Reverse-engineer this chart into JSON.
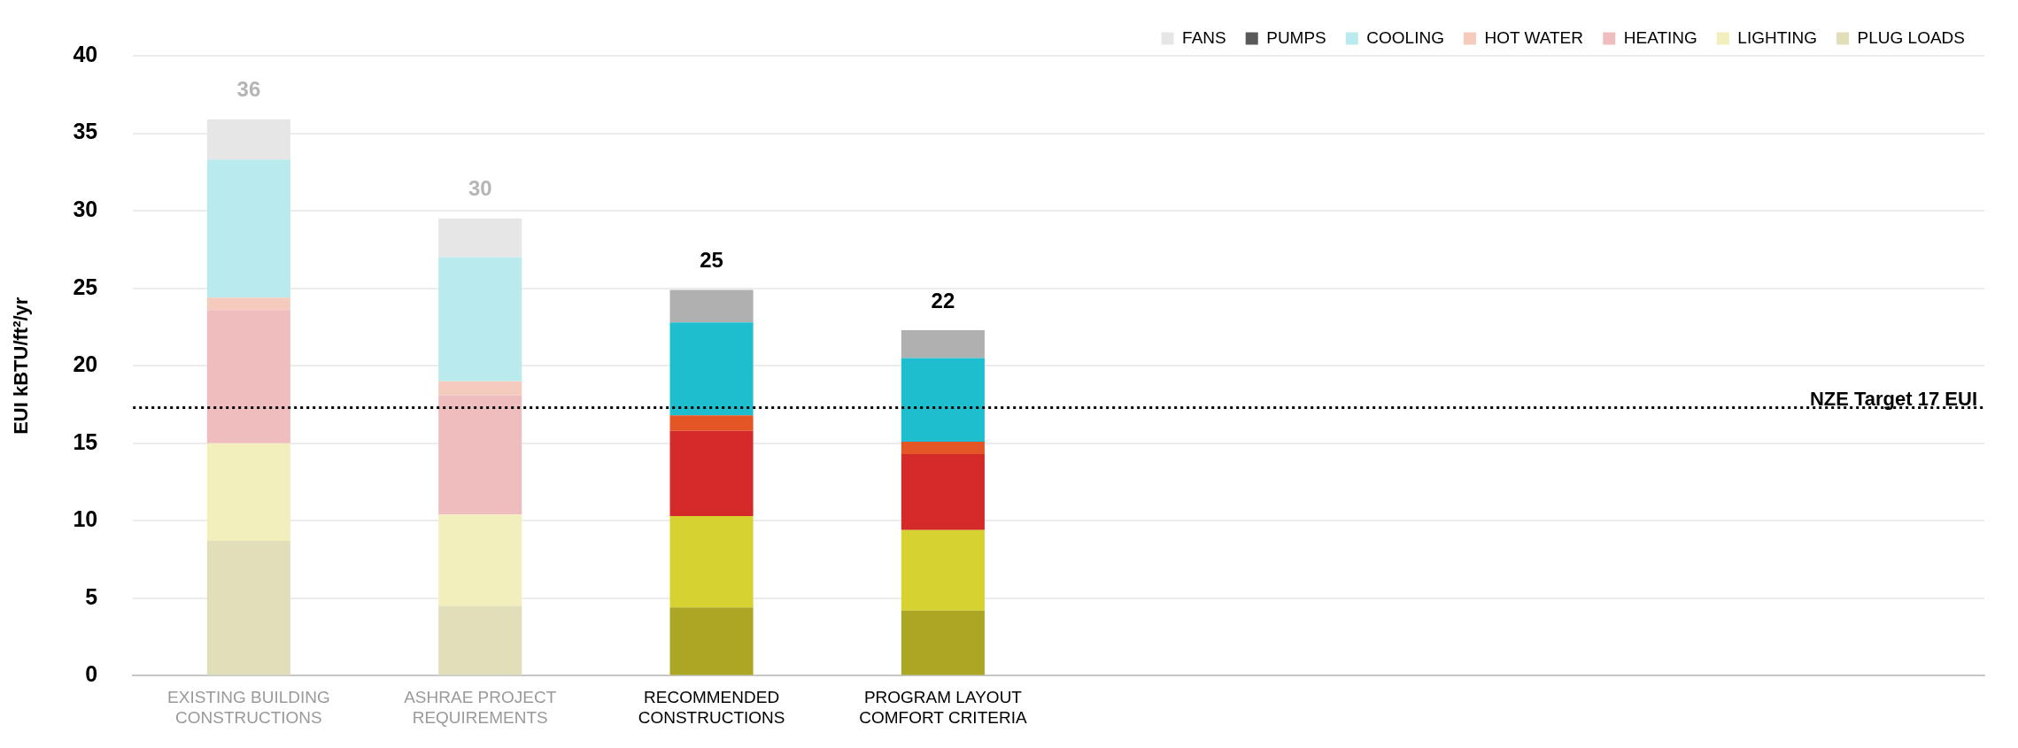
{
  "chart_data": {
    "type": "bar",
    "stacked": true,
    "ylabel": "EUI kBTU/ft²/yr",
    "categories": [
      "EXISTING BUILDING CONSTRUCTIONS",
      "ASHRAE PROJECT REQUIREMENTS",
      "RECOMMENDED CONSTRUCTIONS",
      "PROGRAM LAYOUT COMFORT CRITERIA",
      null,
      null,
      null,
      null
    ],
    "series": [
      {
        "name": "PLUG LOADS",
        "color": "#aba725",
        "colors": [
          "#e1dfb9",
          "#e1dfb9",
          "#aba725",
          "#aba725",
          null,
          null,
          null,
          null
        ],
        "values": [
          8.7,
          4.5,
          4.4,
          4.2,
          null,
          null,
          null,
          null
        ]
      },
      {
        "name": "LIGHTING",
        "color": "#d6d232",
        "colors": [
          "#f2efbd",
          "#f2efbd",
          "#d6d232",
          "#d6d232",
          null,
          null,
          null,
          null
        ],
        "values": [
          6.3,
          5.9,
          5.9,
          5.2,
          null,
          null,
          null,
          null
        ]
      },
      {
        "name": "HEATING",
        "color": "#d42a29",
        "colors": [
          "#efbdbd",
          "#efbdbd",
          "#d42a29",
          "#d42a29",
          null,
          null,
          null,
          null
        ],
        "values": [
          8.6,
          7.7,
          5.5,
          4.9,
          null,
          null,
          null,
          null
        ]
      },
      {
        "name": "HOT WATER",
        "color": "#e45625",
        "colors": [
          "#f5cbbd",
          "#f5cbbd",
          "#e45625",
          "#e45625",
          null,
          null,
          null,
          null
        ],
        "values": [
          0.8,
          0.9,
          1.0,
          0.8,
          null,
          null,
          null,
          null
        ]
      },
      {
        "name": "COOLING",
        "color": "#1fbecf",
        "colors": [
          "#b9eaee",
          "#b9eaee",
          "#1fbecf",
          "#1fbecf",
          null,
          null,
          null,
          null
        ],
        "values": [
          8.9,
          8.0,
          6.0,
          5.4,
          null,
          null,
          null,
          null
        ]
      },
      {
        "name": "PUMPS",
        "color": "#595959",
        "values": [
          0,
          0,
          0,
          0,
          null,
          null,
          null,
          null
        ]
      },
      {
        "name": "FANS",
        "color": "#b0b0b0",
        "colors": [
          "#e6e6e6",
          "#e6e6e6",
          "#b0b0b0",
          "#b0b0b0",
          null,
          null,
          null,
          null
        ],
        "values": [
          2.6,
          2.5,
          2.1,
          1.8,
          null,
          null,
          null,
          null
        ]
      }
    ],
    "totals": [
      "36",
      "30",
      "25",
      "22",
      null,
      null,
      null,
      null
    ],
    "ylim": [
      0,
      40
    ],
    "yticks": [
      0,
      5,
      10,
      15,
      20,
      25,
      30,
      35,
      40
    ],
    "ref_lines": [
      {
        "axis": "y",
        "value": 17.3,
        "label": "NZE Target 17 EUI",
        "color": "#000000",
        "line_style": "dotted"
      }
    ],
    "grid": "y",
    "legend": "top right"
  }
}
